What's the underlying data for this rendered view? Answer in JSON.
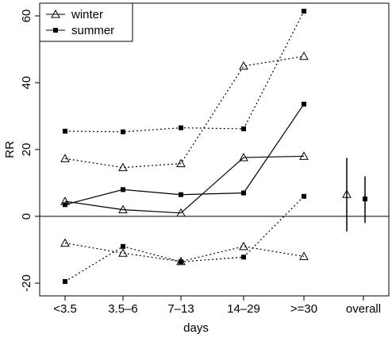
{
  "chart_data": {
    "type": "line",
    "x_label": "days",
    "y_label": "RR",
    "categories": [
      "<3.5",
      "3.5–6",
      "7–13",
      "14–29",
      ">=30"
    ],
    "overall_label": "overall",
    "ylim": [
      -23.8,
      63.8
    ],
    "yticks": [
      -20,
      0,
      20,
      40,
      60
    ],
    "legend": "top-left",
    "series": [
      {
        "name": "winter",
        "marker": "triangle",
        "color": "#000000",
        "values": [
          4.5,
          2,
          1,
          17.6,
          18
        ],
        "lower": [
          -8,
          -11,
          -13.5,
          -9,
          -12
        ],
        "upper": [
          17.3,
          14.6,
          15.8,
          45,
          47.9
        ],
        "overall": {
          "value": 6.6,
          "lower": -4.5,
          "upper": 17.5
        }
      },
      {
        "name": "summer",
        "marker": "square",
        "color": "#000000",
        "values": [
          3.5,
          8,
          6.5,
          7,
          33.6
        ],
        "lower": [
          -19.5,
          -9,
          -13.6,
          -12.2,
          6
        ],
        "upper": [
          25.5,
          25.3,
          26.5,
          26.2,
          61.4
        ],
        "overall": {
          "value": 5.2,
          "lower": -2,
          "upper": 12
        }
      }
    ]
  }
}
